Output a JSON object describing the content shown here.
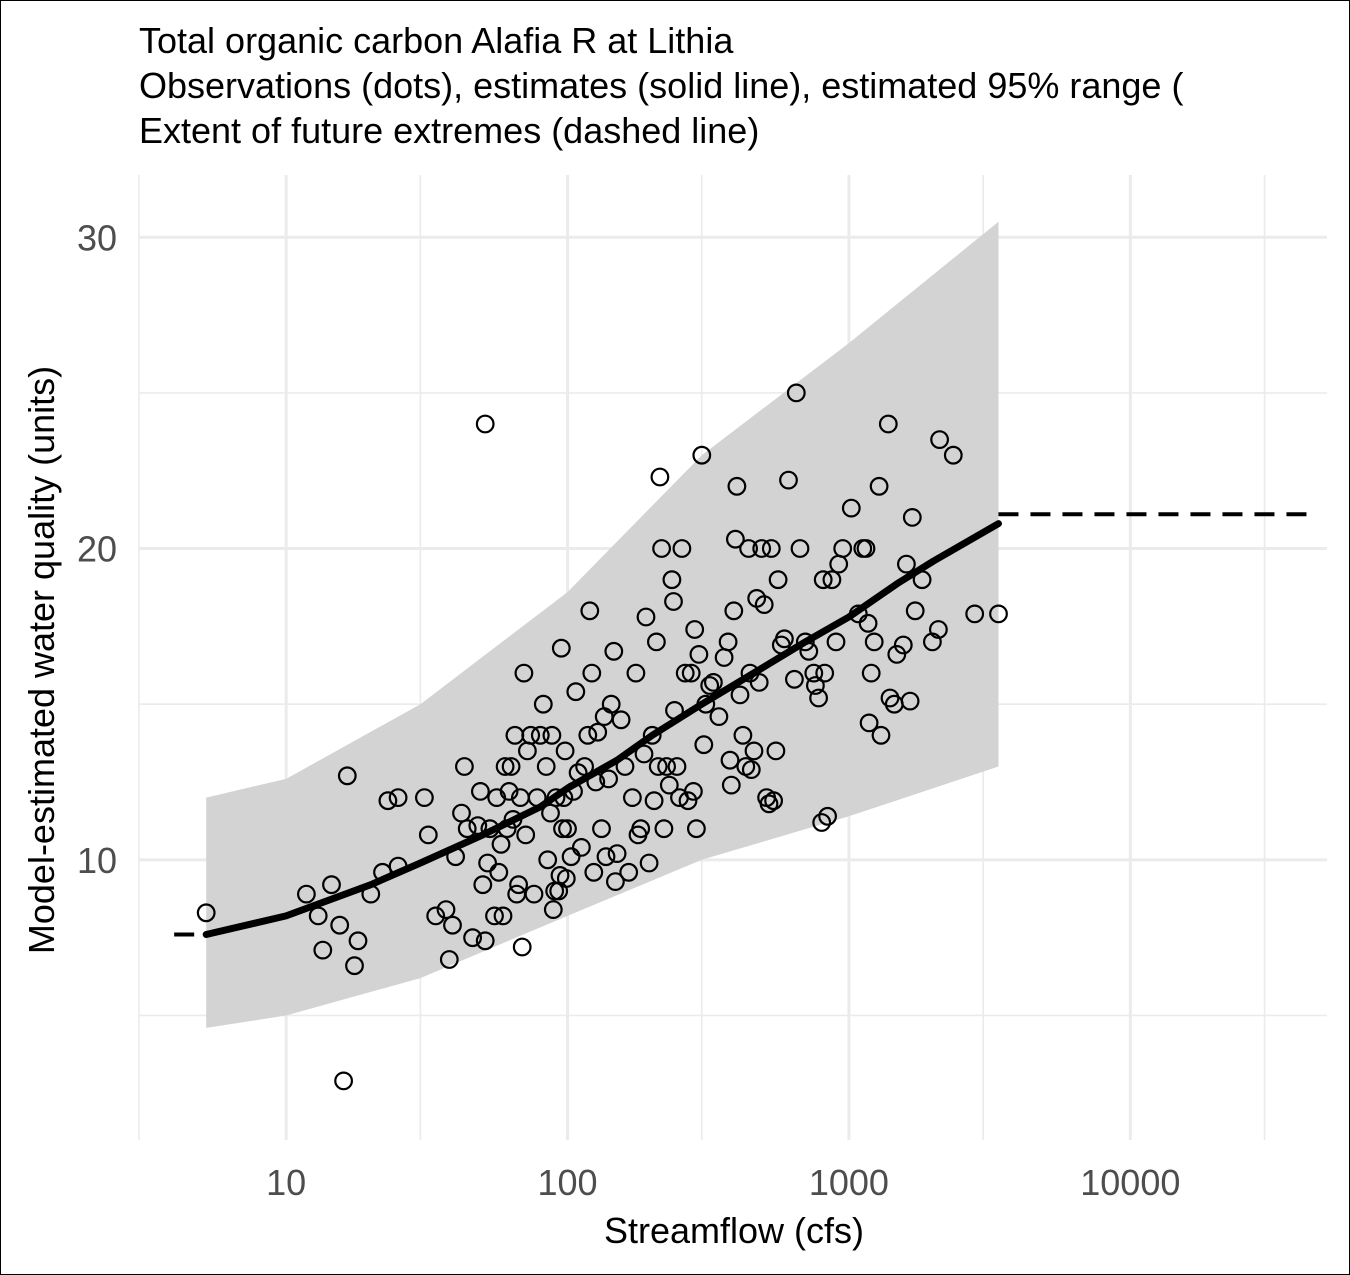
{
  "chart_data": {
    "type": "scatter",
    "title": "Total organic carbon Alafia R at Lithia",
    "subtitle_lines": [
      "Observations (dots), estimates (solid line), estimated 95% range (",
      "Extent of future extremes (dashed line)"
    ],
    "xlabel": "Streamflow (cfs)",
    "ylabel": "Model-estimated water quality (units)",
    "x_scale": "log10",
    "xlim": [
      3,
      50000
    ],
    "ylim": [
      1,
      32
    ],
    "x_ticks": [
      10,
      100,
      1000,
      10000
    ],
    "x_tick_labels": [
      "10",
      "100",
      "1000",
      "10000"
    ],
    "y_ticks": [
      10,
      20,
      30
    ],
    "y_tick_labels": [
      "10",
      "20",
      "30"
    ],
    "grid": true,
    "legend": "none",
    "colors": {
      "points": "#000000",
      "estimate_line": "#000000",
      "ribbon": "#d3d3d3",
      "grid": "#ebebeb"
    },
    "estimate_curve": {
      "x": [
        5.2,
        10,
        20,
        30,
        50,
        80,
        100,
        150,
        200,
        300,
        500,
        700,
        1000,
        1500,
        2000,
        3400
      ],
      "y": [
        7.6,
        8.2,
        9.2,
        9.9,
        10.8,
        11.7,
        12.3,
        13.2,
        14.0,
        15.0,
        16.2,
        17.0,
        17.8,
        18.9,
        19.6,
        20.8
      ]
    },
    "range_95": {
      "x": [
        5.2,
        10,
        30,
        100,
        300,
        1000,
        3400
      ],
      "lower": [
        4.6,
        5.0,
        6.2,
        8.2,
        10.0,
        11.4,
        13.0
      ],
      "upper": [
        12.0,
        12.6,
        15.0,
        18.6,
        23.0,
        26.6,
        30.5
      ]
    },
    "future_extremes": {
      "low": {
        "x": [
          4.0,
          5.2
        ],
        "y": [
          7.6,
          7.6
        ]
      },
      "high": {
        "x": [
          3400,
          45000
        ],
        "y": [
          21.1,
          21.1
        ]
      }
    },
    "points": [
      [
        5.2,
        8.3
      ],
      [
        11.8,
        8.9
      ],
      [
        13,
        8.2
      ],
      [
        13.5,
        7.1
      ],
      [
        14.5,
        9.2
      ],
      [
        15.5,
        7.9
      ],
      [
        16.5,
        12.7
      ],
      [
        16,
        2.9
      ],
      [
        17.5,
        6.6
      ],
      [
        18,
        7.4
      ],
      [
        20,
        8.9
      ],
      [
        22,
        9.6
      ],
      [
        23,
        11.9
      ],
      [
        25,
        12
      ],
      [
        25,
        9.8
      ],
      [
        31,
        12
      ],
      [
        32,
        10.8
      ],
      [
        34,
        8.2
      ],
      [
        37,
        8.4
      ],
      [
        38,
        6.8
      ],
      [
        39,
        7.9
      ],
      [
        40,
        10.1
      ],
      [
        42,
        11.5
      ],
      [
        43,
        13
      ],
      [
        44,
        11
      ],
      [
        46,
        7.5
      ],
      [
        48,
        11.1
      ],
      [
        49,
        12.2
      ],
      [
        50,
        9.2
      ],
      [
        51,
        24
      ],
      [
        51,
        7.4
      ],
      [
        52,
        9.9
      ],
      [
        53,
        11
      ],
      [
        55,
        8.2
      ],
      [
        56,
        12
      ],
      [
        57,
        9.6
      ],
      [
        58,
        10.5
      ],
      [
        59,
        8.2
      ],
      [
        60,
        13
      ],
      [
        61,
        11
      ],
      [
        62,
        12.2
      ],
      [
        63,
        13
      ],
      [
        64,
        11.3
      ],
      [
        65,
        14
      ],
      [
        66,
        8.9
      ],
      [
        67,
        9.2
      ],
      [
        68,
        12
      ],
      [
        69,
        7.2
      ],
      [
        70,
        16
      ],
      [
        71,
        10.8
      ],
      [
        72,
        13.5
      ],
      [
        74,
        14
      ],
      [
        76,
        8.9
      ],
      [
        78,
        12
      ],
      [
        80,
        14
      ],
      [
        82,
        15
      ],
      [
        84,
        13
      ],
      [
        85,
        10
      ],
      [
        87,
        11.5
      ],
      [
        88,
        14
      ],
      [
        89,
        8.4
      ],
      [
        90,
        9
      ],
      [
        91,
        12
      ],
      [
        93,
        9
      ],
      [
        94,
        9.5
      ],
      [
        95,
        16.8
      ],
      [
        96,
        11
      ],
      [
        97,
        12
      ],
      [
        98,
        13.5
      ],
      [
        99,
        9.4
      ],
      [
        100,
        11
      ],
      [
        103,
        10.1
      ],
      [
        105,
        12.2
      ],
      [
        107,
        15.4
      ],
      [
        109,
        12.8
      ],
      [
        112,
        10.4
      ],
      [
        115,
        13
      ],
      [
        118,
        14
      ],
      [
        120,
        18
      ],
      [
        122,
        16
      ],
      [
        124,
        9.6
      ],
      [
        126,
        12.5
      ],
      [
        128,
        14.1
      ],
      [
        132,
        11
      ],
      [
        135,
        14.6
      ],
      [
        137,
        10.1
      ],
      [
        140,
        12.6
      ],
      [
        143,
        15
      ],
      [
        146,
        16.7
      ],
      [
        148,
        9.3
      ],
      [
        150,
        10.2
      ],
      [
        155,
        14.5
      ],
      [
        160,
        13
      ],
      [
        165,
        9.6
      ],
      [
        170,
        12
      ],
      [
        175,
        16
      ],
      [
        178,
        10.8
      ],
      [
        182,
        11
      ],
      [
        187,
        13.4
      ],
      [
        190,
        17.8
      ],
      [
        195,
        9.9
      ],
      [
        200,
        14
      ],
      [
        203,
        11.9
      ],
      [
        207,
        17
      ],
      [
        210,
        13
      ],
      [
        213,
        22.3
      ],
      [
        216,
        20
      ],
      [
        220,
        11
      ],
      [
        225,
        13
      ],
      [
        230,
        12.4
      ],
      [
        235,
        19
      ],
      [
        238,
        18.3
      ],
      [
        240,
        14.8
      ],
      [
        245,
        13
      ],
      [
        250,
        12
      ],
      [
        255,
        20
      ],
      [
        262,
        16
      ],
      [
        268,
        11.9
      ],
      [
        275,
        16
      ],
      [
        280,
        12.2
      ],
      [
        283,
        17.4
      ],
      [
        287,
        11
      ],
      [
        293,
        16.6
      ],
      [
        300,
        23
      ],
      [
        305,
        13.7
      ],
      [
        310,
        15
      ],
      [
        320,
        15.6
      ],
      [
        330,
        15.7
      ],
      [
        345,
        14.6
      ],
      [
        360,
        16.5
      ],
      [
        372,
        17
      ],
      [
        378,
        13.2
      ],
      [
        382,
        12.4
      ],
      [
        390,
        18
      ],
      [
        395,
        20.3
      ],
      [
        400,
        22
      ],
      [
        410,
        15.3
      ],
      [
        420,
        14
      ],
      [
        430,
        13
      ],
      [
        440,
        20
      ],
      [
        445,
        16
      ],
      [
        450,
        12.9
      ],
      [
        460,
        13.5
      ],
      [
        470,
        18.4
      ],
      [
        480,
        15.7
      ],
      [
        490,
        20
      ],
      [
        500,
        18.2
      ],
      [
        510,
        12
      ],
      [
        520,
        11.8
      ],
      [
        530,
        20
      ],
      [
        540,
        11.9
      ],
      [
        550,
        13.5
      ],
      [
        560,
        19
      ],
      [
        575,
        16.9
      ],
      [
        590,
        17.1
      ],
      [
        610,
        22.2
      ],
      [
        640,
        15.8
      ],
      [
        650,
        25
      ],
      [
        670,
        20
      ],
      [
        700,
        17
      ],
      [
        720,
        16.7
      ],
      [
        750,
        16
      ],
      [
        760,
        15.6
      ],
      [
        780,
        15.2
      ],
      [
        800,
        11.2
      ],
      [
        810,
        19
      ],
      [
        820,
        16
      ],
      [
        840,
        11.4
      ],
      [
        870,
        19
      ],
      [
        900,
        17
      ],
      [
        920,
        19.5
      ],
      [
        950,
        20
      ],
      [
        1020,
        21.3
      ],
      [
        1080,
        17.9
      ],
      [
        1120,
        20
      ],
      [
        1150,
        20
      ],
      [
        1170,
        17.6
      ],
      [
        1180,
        14.4
      ],
      [
        1200,
        16
      ],
      [
        1230,
        17
      ],
      [
        1280,
        22
      ],
      [
        1300,
        14
      ],
      [
        1380,
        24
      ],
      [
        1400,
        15.2
      ],
      [
        1450,
        15
      ],
      [
        1480,
        16.6
      ],
      [
        1560,
        16.9
      ],
      [
        1600,
        19.5
      ],
      [
        1650,
        15.1
      ],
      [
        1680,
        21
      ],
      [
        1720,
        18
      ],
      [
        1820,
        19
      ],
      [
        1980,
        17
      ],
      [
        2080,
        17.4
      ],
      [
        2100,
        23.5
      ],
      [
        2350,
        23
      ],
      [
        2800,
        17.9
      ],
      [
        3400,
        17.9
      ]
    ]
  }
}
